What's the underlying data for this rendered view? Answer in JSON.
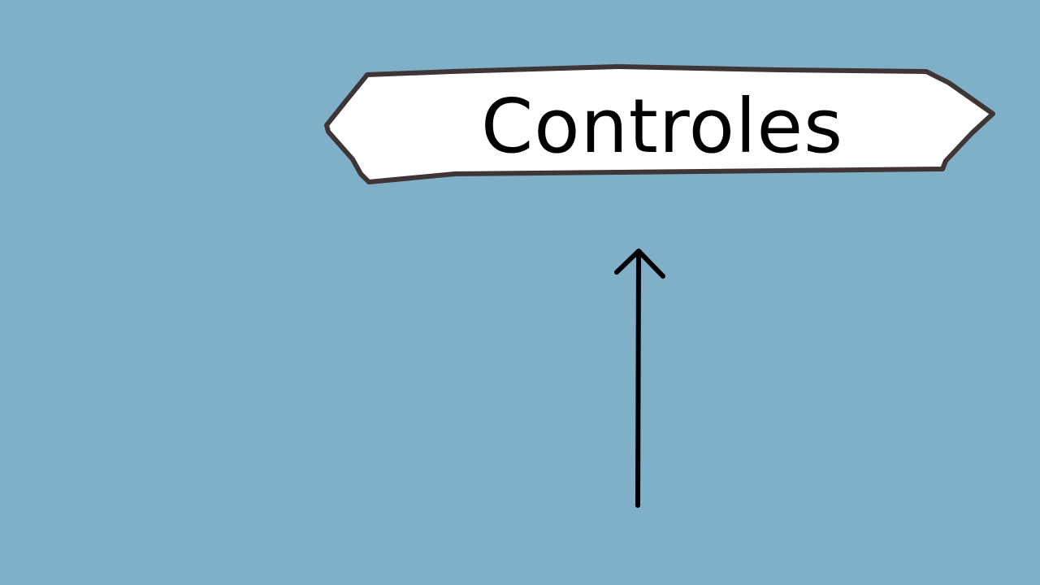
{
  "sign": {
    "label": "Controles"
  },
  "colors": {
    "background": "#7fb0c8",
    "sign_fill": "#ffffff",
    "sign_border": "#3e3536",
    "ink": "#000000"
  },
  "icons": {
    "arrow": "arrow-up-icon"
  }
}
